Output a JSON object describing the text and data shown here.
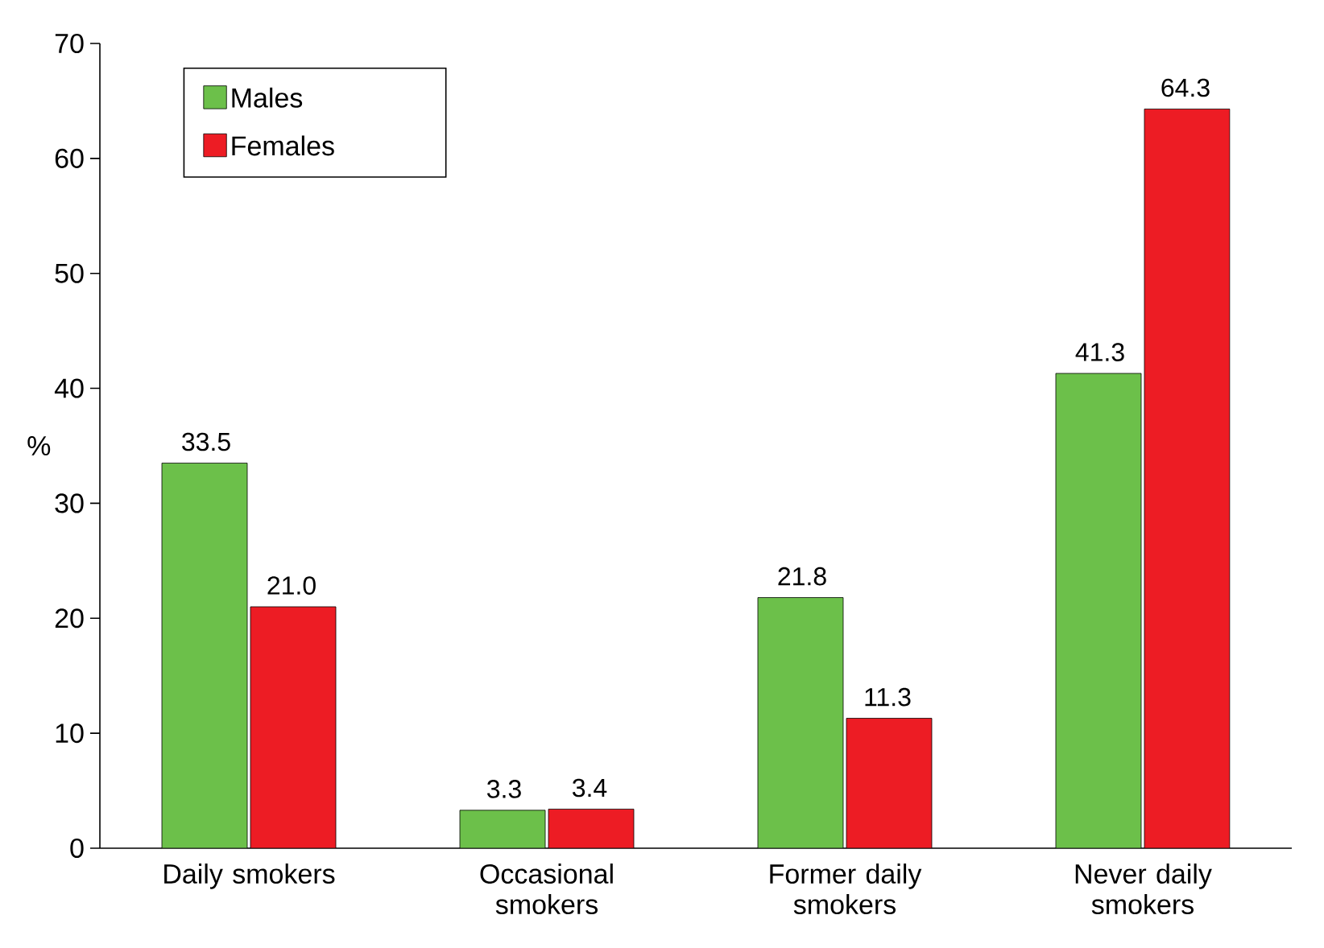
{
  "chart_data": {
    "type": "bar",
    "ylabel": "%",
    "categories": [
      "Daily smokers",
      "Occasional smokers",
      "Former daily smokers",
      "Never daily smokers"
    ],
    "series": [
      {
        "name": "Males",
        "color": "#6cc04a",
        "values": [
          33.5,
          3.3,
          21.8,
          41.3
        ],
        "value_labels": [
          "33.5",
          "3.3",
          "21.8",
          "41.3"
        ]
      },
      {
        "name": "Females",
        "color": "#ed1c24",
        "values": [
          21.0,
          3.4,
          11.3,
          64.3
        ],
        "value_labels": [
          "21.0",
          "3.4",
          "11.3",
          "64.3"
        ]
      }
    ],
    "ylim": [
      0,
      70
    ],
    "yticks": [
      0,
      10,
      20,
      30,
      40,
      50,
      60,
      70
    ],
    "legend": "top left",
    "grid": false
  }
}
